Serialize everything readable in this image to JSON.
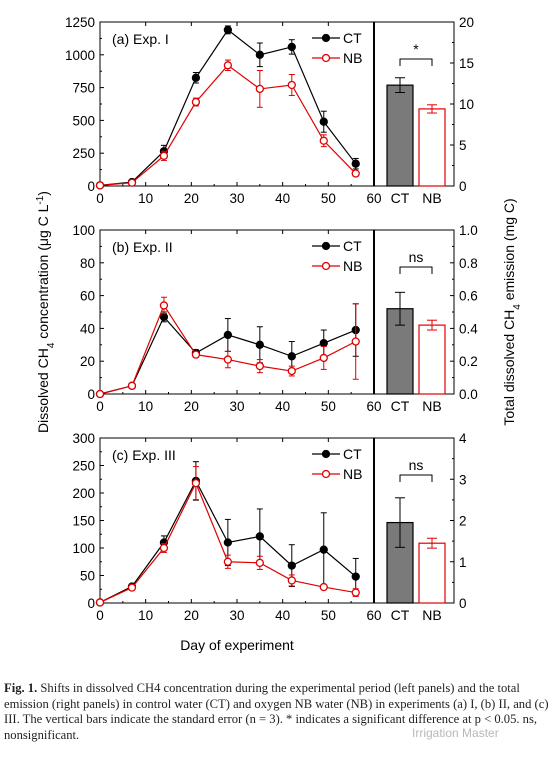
{
  "chart_data": [
    {
      "type": "line",
      "panel_label": "(a) Exp. I",
      "x": [
        0,
        7,
        14,
        21,
        28,
        35,
        42,
        49,
        56
      ],
      "xlim": [
        0,
        60
      ],
      "xticks": [
        0,
        10,
        20,
        30,
        40,
        50,
        60
      ],
      "ylim": [
        0,
        1250
      ],
      "yticks": [
        0,
        250,
        500,
        750,
        1000,
        1250
      ],
      "series": [
        {
          "name": "CT",
          "color": "#000000",
          "marker": "filled-circle",
          "values": [
            5,
            30,
            265,
            825,
            1190,
            1000,
            1060,
            490,
            170
          ],
          "error": [
            5,
            12,
            45,
            40,
            30,
            90,
            55,
            80,
            40
          ]
        },
        {
          "name": "NB",
          "color": "#e00000",
          "marker": "open-circle",
          "values": [
            5,
            25,
            230,
            640,
            920,
            740,
            770,
            345,
            95
          ],
          "error": [
            5,
            10,
            35,
            30,
            40,
            140,
            80,
            45,
            15
          ]
        }
      ],
      "bars": {
        "categories": [
          "CT",
          "NB"
        ],
        "values": [
          12.3,
          9.4
        ],
        "error": [
          0.9,
          0.5
        ],
        "colors": [
          "#7a7a7a",
          "#ffffff"
        ],
        "edge_colors": [
          "#000000",
          "#e00000"
        ],
        "ylim": [
          0,
          20
        ],
        "yticks": [
          0,
          5,
          10,
          15,
          20
        ],
        "significance": "*"
      }
    },
    {
      "type": "line",
      "panel_label": "(b) Exp. II",
      "x": [
        0,
        7,
        14,
        21,
        28,
        35,
        42,
        49,
        56
      ],
      "xlim": [
        0,
        60
      ],
      "xticks": [
        0,
        10,
        20,
        30,
        40,
        50,
        60
      ],
      "ylim": [
        0,
        100
      ],
      "yticks": [
        0,
        20,
        40,
        60,
        80,
        100
      ],
      "series": [
        {
          "name": "CT",
          "color": "#000000",
          "marker": "filled-circle",
          "values": [
            0,
            5,
            47,
            25,
            36,
            30,
            23,
            31,
            39
          ],
          "error": [
            0.5,
            1,
            3,
            2,
            10,
            11,
            9,
            8,
            16
          ]
        },
        {
          "name": "NB",
          "color": "#e00000",
          "marker": "open-circle",
          "values": [
            0,
            5,
            54,
            24,
            21,
            17,
            14,
            22,
            32
          ],
          "error": [
            0.5,
            1,
            5,
            1.5,
            5,
            4,
            3,
            7,
            23
          ]
        }
      ],
      "bars": {
        "categories": [
          "CT",
          "NB"
        ],
        "values": [
          0.52,
          0.42
        ],
        "error": [
          0.1,
          0.03
        ],
        "colors": [
          "#7a7a7a",
          "#ffffff"
        ],
        "edge_colors": [
          "#000000",
          "#e00000"
        ],
        "ylim": [
          0,
          1.0
        ],
        "yticks": [
          0.0,
          0.2,
          0.4,
          0.6,
          0.8,
          1.0
        ],
        "significance": "ns"
      }
    },
    {
      "type": "line",
      "panel_label": "(c) Exp. III",
      "x": [
        0,
        7,
        14,
        21,
        28,
        35,
        42,
        49,
        56
      ],
      "xlim": [
        0,
        60
      ],
      "xticks": [
        0,
        10,
        20,
        30,
        40,
        50,
        60
      ],
      "ylim": [
        0,
        300
      ],
      "yticks": [
        0,
        50,
        100,
        150,
        200,
        250,
        300
      ],
      "series": [
        {
          "name": "CT",
          "color": "#000000",
          "marker": "filled-circle",
          "values": [
            1,
            30,
            110,
            222,
            110,
            121,
            68,
            97,
            48
          ],
          "error": [
            1,
            3,
            12,
            35,
            42,
            50,
            38,
            67,
            33
          ]
        },
        {
          "name": "NB",
          "color": "#e00000",
          "marker": "open-circle",
          "values": [
            1,
            28,
            100,
            218,
            75,
            73,
            41,
            29,
            19
          ],
          "error": [
            1,
            3,
            8,
            30,
            12,
            12,
            10,
            4,
            7
          ]
        }
      ],
      "bars": {
        "categories": [
          "CT",
          "NB"
        ],
        "values": [
          1.95,
          1.45
        ],
        "error": [
          0.6,
          0.12
        ],
        "colors": [
          "#7a7a7a",
          "#ffffff"
        ],
        "edge_colors": [
          "#000000",
          "#e00000"
        ],
        "ylim": [
          0,
          4
        ],
        "yticks": [
          0,
          1,
          2,
          3,
          4
        ],
        "significance": "ns"
      }
    }
  ],
  "axes": {
    "xlabel": "Day of experiment",
    "ylabel_left": "Dissolved CH4 concentration (μg C L-1)",
    "ylabel_right": "Total dissolved CH4 emission (mg C)"
  },
  "caption": {
    "label": "Fig. 1.",
    "text": "Shifts in dissolved CH4 concentration during the experimental period (left panels) and the total emission (right panels) in control water (CT) and oxygen NB water (NB) in experiments (a) I, (b) II, and (c) III. The vertical bars indicate the standard error (n = 3). * indicates a significant difference at p < 0.05. ns, nonsignificant."
  },
  "watermark": "Irrigation Master"
}
